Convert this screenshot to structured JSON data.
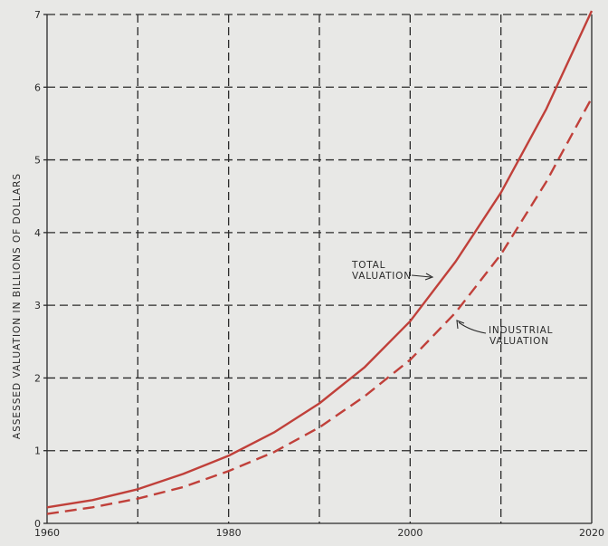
{
  "chart_data": {
    "type": "line",
    "xlabel": "",
    "ylabel": "ASSESSED VALUATION IN BILLIONS OF DOLLARS",
    "xlim": [
      1960,
      2020
    ],
    "ylim": [
      0,
      7
    ],
    "x_ticks": [
      1960,
      1980,
      2000,
      2020
    ],
    "y_ticks": [
      0,
      1,
      2,
      3,
      4,
      5,
      6,
      7
    ],
    "grid": true,
    "colors": {
      "series": "#c0403a",
      "ink": "#2a2a2a",
      "background": "#e8e8e6"
    },
    "series": [
      {
        "name": "TOTAL VALUATION",
        "style": "solid",
        "x": [
          1960,
          1965,
          1970,
          1975,
          1980,
          1985,
          1990,
          1995,
          2000,
          2005,
          2010,
          2015,
          2020
        ],
        "y": [
          0.22,
          0.32,
          0.47,
          0.68,
          0.93,
          1.25,
          1.65,
          2.15,
          2.78,
          3.6,
          4.55,
          5.7,
          7.05
        ]
      },
      {
        "name": "INDUSTRIAL VALUATION",
        "style": "dashed",
        "x": [
          1960,
          1965,
          1970,
          1975,
          1980,
          1985,
          1990,
          1995,
          2000,
          2005,
          2010,
          2015,
          2020
        ],
        "y": [
          0.13,
          0.22,
          0.34,
          0.5,
          0.72,
          0.98,
          1.32,
          1.75,
          2.25,
          2.9,
          3.7,
          4.7,
          5.85
        ]
      }
    ],
    "annotations": [
      {
        "lines": [
          "TOTAL",
          "VALUATION"
        ],
        "target": "TOTAL VALUATION"
      },
      {
        "lines": [
          "INDUSTRIAL",
          "VALUATION"
        ],
        "target": "INDUSTRIAL VALUATION"
      }
    ]
  }
}
